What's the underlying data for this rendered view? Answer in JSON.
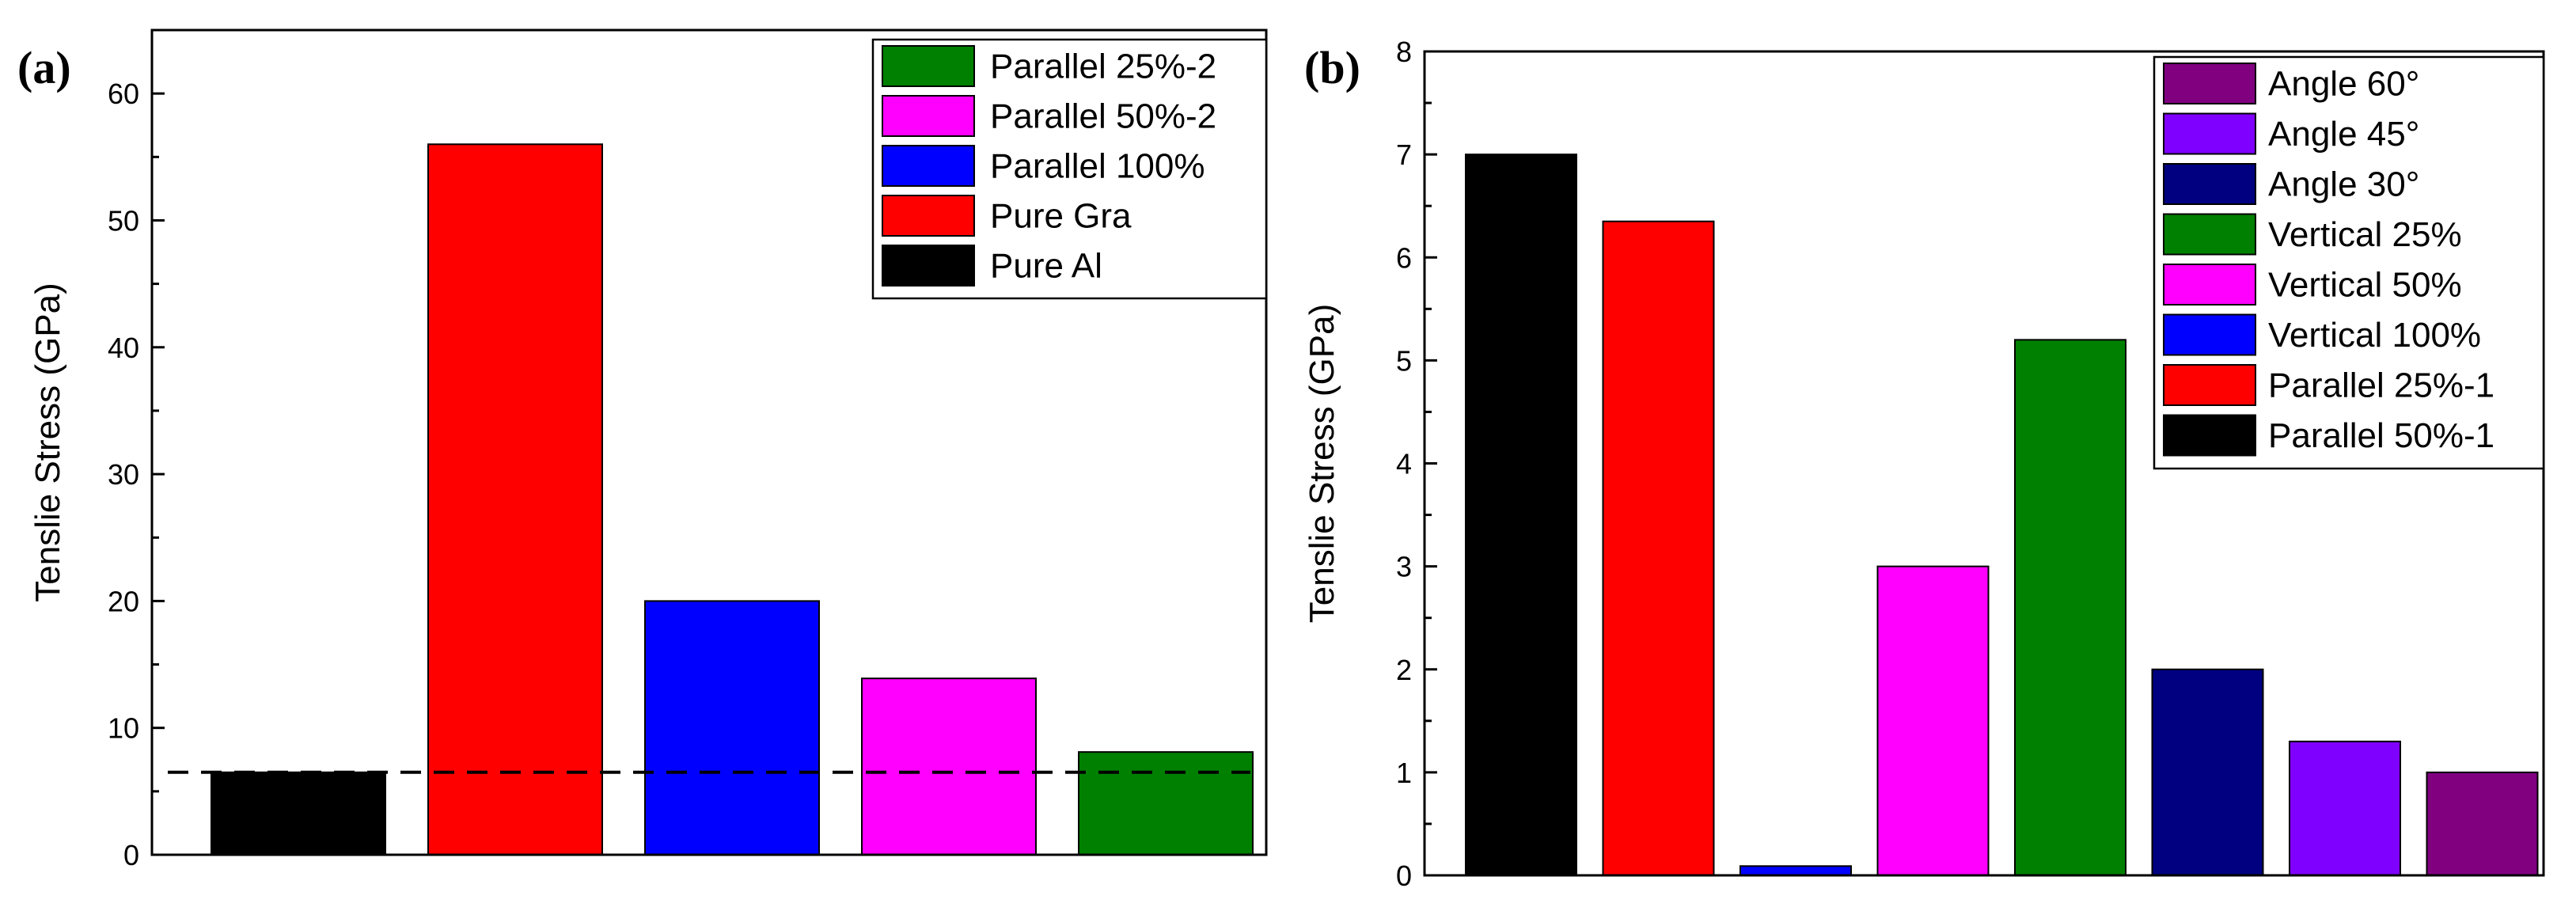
{
  "chart_data": [
    {
      "panel": "(a)",
      "type": "bar",
      "ylabel": "Tenslie Stress (GPa)",
      "xlabel": "",
      "ylim": [
        0,
        65
      ],
      "yticks": [
        0,
        10,
        20,
        30,
        40,
        50,
        60
      ],
      "categories": [
        "Pure Al",
        "Pure Gra",
        "Parallel 100%",
        "Parallel 50%-2",
        "Parallel 25%-2"
      ],
      "values": [
        6.5,
        56,
        20,
        13.9,
        8.1
      ],
      "colors": [
        "#000000",
        "#ff0000",
        "#0000ff",
        "#ff00ff",
        "#008000"
      ],
      "reference_line": 6.5,
      "legend": [
        {
          "label": "Parallel 25%-2",
          "color": "#008000"
        },
        {
          "label": "Parallel 50%-2",
          "color": "#ff00ff"
        },
        {
          "label": "Parallel 100%",
          "color": "#0000ff"
        },
        {
          "label": "Pure Gra",
          "color": "#ff0000"
        },
        {
          "label": "Pure Al",
          "color": "#000000"
        }
      ],
      "legend_position": "top-right"
    },
    {
      "panel": "(b)",
      "type": "bar",
      "ylabel": "Tenslie Stress (GPa)",
      "xlabel": "",
      "ylim": [
        0,
        8
      ],
      "yticks": [
        0,
        1,
        2,
        3,
        4,
        5,
        6,
        7,
        8
      ],
      "categories": [
        "Parallel 50%-1",
        "Parallel 25%-1",
        "Vertical 100%",
        "Vertical 50%",
        "Vertical 25%",
        "Angle 30°",
        "Angle 45°",
        "Angle 60°"
      ],
      "values": [
        7.0,
        6.35,
        0.09,
        3.0,
        5.2,
        2.0,
        1.3,
        1.0
      ],
      "colors": [
        "#000000",
        "#ff0000",
        "#0000ff",
        "#ff00ff",
        "#008000",
        "#000080",
        "#8000ff",
        "#800080"
      ],
      "legend": [
        {
          "label": "Angle 60°",
          "color": "#800080"
        },
        {
          "label": "Angle 45°",
          "color": "#8000ff"
        },
        {
          "label": "Angle 30°",
          "color": "#000080"
        },
        {
          "label": "Vertical 25%",
          "color": "#008000"
        },
        {
          "label": "Vertical 50%",
          "color": "#ff00ff"
        },
        {
          "label": "Vertical 100%",
          "color": "#0000ff"
        },
        {
          "label": "Parallel 25%-1",
          "color": "#ff0000"
        },
        {
          "label": "Parallel 50%-1",
          "color": "#000000"
        }
      ],
      "legend_position": "top-right"
    }
  ]
}
